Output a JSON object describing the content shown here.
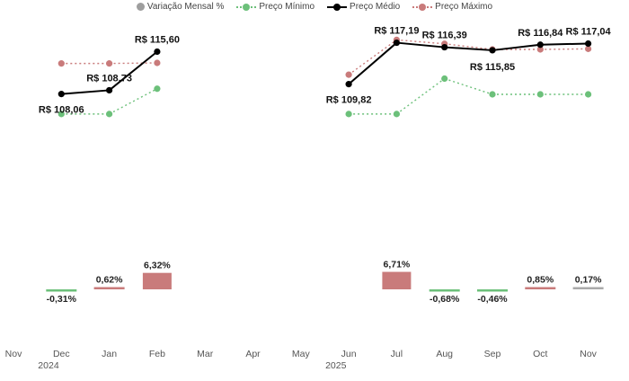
{
  "chart_data": {
    "type": "line",
    "title": "",
    "legend": [
      {
        "key": "variacao",
        "label": "Variação Mensal %",
        "color": "#9e9e9e",
        "style": "dot"
      },
      {
        "key": "minimo",
        "label": "Preço Mínimo",
        "color": "#6cc07a",
        "style": "dotted"
      },
      {
        "key": "medio",
        "label": "Preço Médio",
        "color": "#000000",
        "style": "solid"
      },
      {
        "key": "maximo",
        "label": "Preço Máximo",
        "color": "#c97b7b",
        "style": "dotted"
      }
    ],
    "legend_position": "top-center",
    "categories": [
      "Nov",
      "Dec",
      "Jan",
      "Feb",
      "Mar",
      "Apr",
      "May",
      "Jun",
      "Jul",
      "Aug",
      "Sep",
      "Oct",
      "Nov"
    ],
    "year_labels": [
      {
        "category_index": 1,
        "label": "2024"
      },
      {
        "category_index": 7,
        "label": "2025"
      }
    ],
    "series": [
      {
        "name": "Preço Máximo",
        "key": "maximo",
        "values": [
          null,
          113.5,
          113.5,
          113.6,
          null,
          null,
          null,
          111.5,
          117.7,
          117.0,
          116.0,
          116.0,
          116.1
        ]
      },
      {
        "name": "Preço Médio",
        "key": "medio",
        "values": [
          null,
          108.06,
          108.73,
          115.6,
          null,
          null,
          null,
          109.82,
          117.19,
          116.39,
          115.85,
          116.84,
          117.04
        ]
      },
      {
        "name": "Preço Mínimo",
        "key": "minimo",
        "values": [
          null,
          104.5,
          104.5,
          109.0,
          null,
          null,
          null,
          104.5,
          104.5,
          110.8,
          108.0,
          108.0,
          108.0
        ]
      },
      {
        "name": "Variação Mensal %",
        "key": "variacao",
        "values": [
          null,
          -0.31,
          0.62,
          6.32,
          null,
          null,
          null,
          null,
          6.71,
          -0.68,
          -0.46,
          0.85,
          0.17
        ]
      }
    ],
    "price_labels": [
      "",
      "R$ 108,06",
      "R$ 108,73",
      "R$ 115,60",
      "",
      "",
      "",
      "R$ 109,82",
      "R$ 117,19",
      "R$ 116,39",
      "R$ 115,85",
      "R$ 116,84",
      "R$ 117,04"
    ],
    "variation_labels": [
      "",
      "-0,31%",
      "0,62%",
      "6,32%",
      "",
      "",
      "",
      "",
      "6,71%",
      "-0,68%",
      "-0,46%",
      "0,85%",
      "0,17%"
    ],
    "variation_colors": {
      "positive": "#c97b7b",
      "negative": "#6cc07a",
      "neutral": "#a9a9a9"
    },
    "grid": false
  }
}
